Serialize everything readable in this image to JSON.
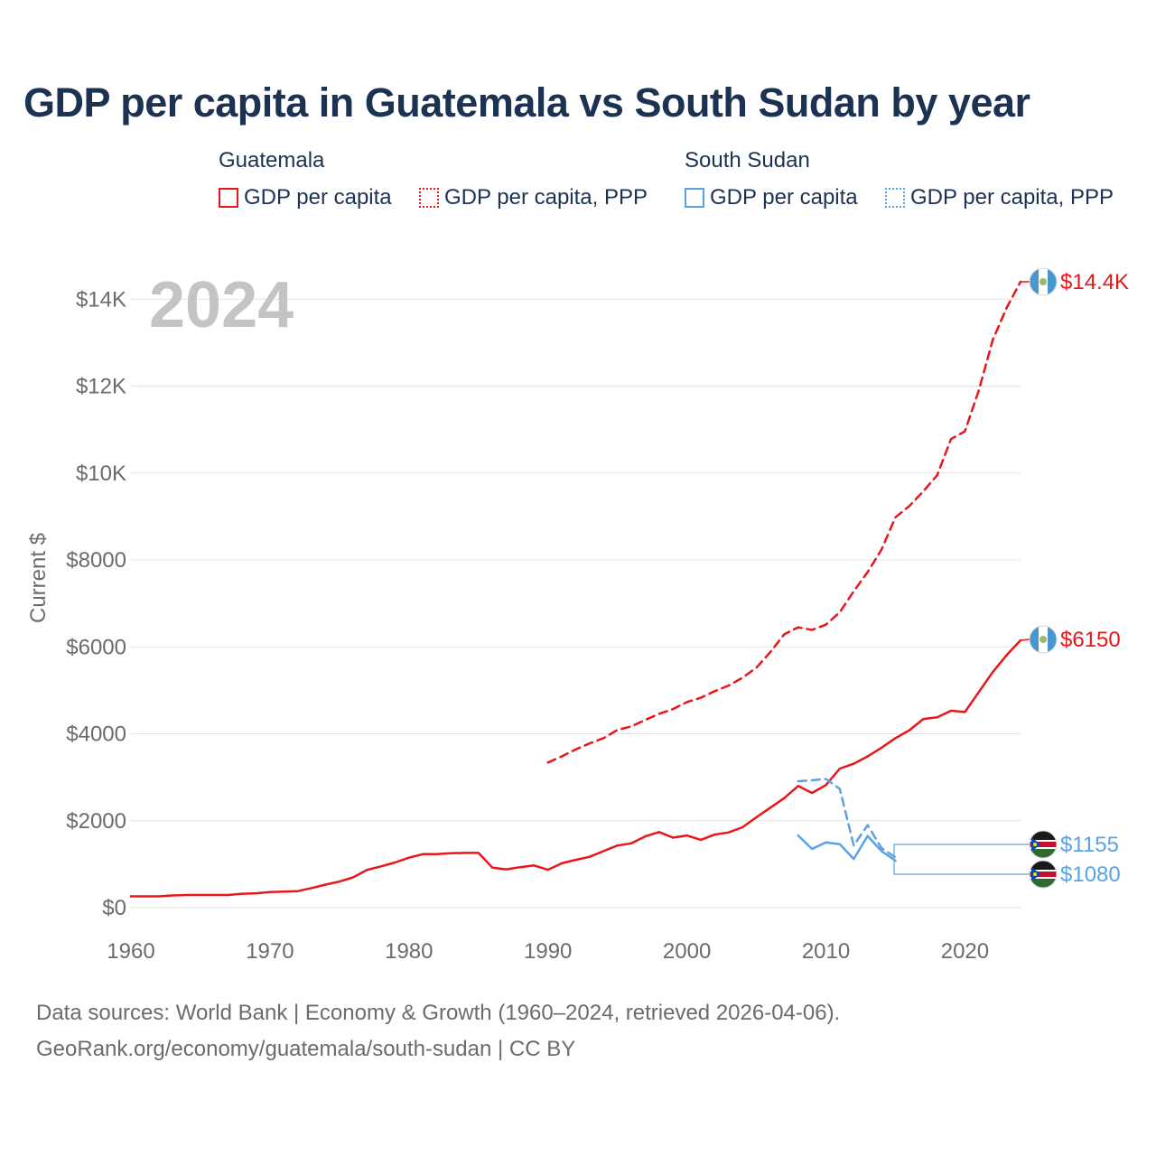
{
  "title": "GDP per capita in Guatemala vs South Sudan by year",
  "legend": {
    "groups": [
      {
        "name": "Guatemala",
        "items": [
          "GDP per capita",
          "GDP per capita, PPP"
        ]
      },
      {
        "name": "South Sudan",
        "items": [
          "GDP per capita",
          "GDP per capita, PPP"
        ]
      }
    ]
  },
  "footer": {
    "line1": "Data sources: World Bank | Economy & Growth (1960–2024, retrieved 2026-04-06).",
    "line2": "GeoRank.org/economy/guatemala/south-sudan | CC BY"
  },
  "colors": {
    "guatemala": "#e8161b",
    "south_sudan": "#5aa2e3",
    "grid": "#e3e3e3",
    "axis_text": "#6b6b6b",
    "year": "#c4c4c4"
  },
  "chart_data": {
    "type": "line",
    "title": "GDP per capita in Guatemala vs South Sudan by year",
    "xlabel": "",
    "ylabel": "Current $",
    "year_label": "2024",
    "xlim": [
      1960,
      2024
    ],
    "ylim": [
      0,
      14400
    ],
    "x_ticks": [
      1960,
      1970,
      1980,
      1990,
      2000,
      2010,
      2020
    ],
    "y_ticks": [
      0,
      2000,
      4000,
      6000,
      8000,
      10000,
      12000,
      14000
    ],
    "y_tick_labels": [
      "$0",
      "$2000",
      "$4000",
      "$6000",
      "$8000",
      "$10K",
      "$12K",
      "$14K"
    ],
    "grid": true,
    "series": [
      {
        "name": "Guatemala GDP per capita",
        "country": "guatemala",
        "style": "solid",
        "end_label": "$6150",
        "x": [
          1960,
          1961,
          1962,
          1963,
          1964,
          1965,
          1966,
          1967,
          1968,
          1969,
          1970,
          1971,
          1972,
          1973,
          1974,
          1975,
          1976,
          1977,
          1978,
          1979,
          1980,
          1981,
          1982,
          1983,
          1984,
          1985,
          1986,
          1987,
          1988,
          1989,
          1990,
          1991,
          1992,
          1993,
          1994,
          1995,
          1996,
          1997,
          1998,
          1999,
          2000,
          2001,
          2002,
          2003,
          2004,
          2005,
          2006,
          2007,
          2008,
          2009,
          2010,
          2011,
          2012,
          2013,
          2014,
          2015,
          2016,
          2017,
          2018,
          2019,
          2020,
          2021,
          2022,
          2023,
          2024
        ],
        "values": [
          260,
          260,
          260,
          280,
          290,
          290,
          290,
          290,
          320,
          330,
          360,
          370,
          380,
          450,
          530,
          600,
          700,
          870,
          950,
          1040,
          1150,
          1230,
          1230,
          1250,
          1260,
          1260,
          920,
          880,
          930,
          970,
          870,
          1020,
          1100,
          1170,
          1300,
          1430,
          1480,
          1640,
          1740,
          1610,
          1660,
          1560,
          1680,
          1730,
          1850,
          2080,
          2300,
          2520,
          2800,
          2640,
          2820,
          3200,
          3310,
          3480,
          3680,
          3900,
          4080,
          4340,
          4380,
          4530,
          4500,
          4960,
          5420,
          5810,
          6150
        ]
      },
      {
        "name": "Guatemala GDP per capita, PPP",
        "country": "guatemala",
        "style": "dashed",
        "end_label": "$14.4K",
        "x": [
          1990,
          1991,
          1992,
          1993,
          1994,
          1995,
          1996,
          1997,
          1998,
          1999,
          2000,
          2001,
          2002,
          2003,
          2004,
          2005,
          2006,
          2007,
          2008,
          2009,
          2010,
          2011,
          2012,
          2013,
          2014,
          2015,
          2016,
          2017,
          2018,
          2019,
          2020,
          2021,
          2022,
          2023,
          2024
        ],
        "values": [
          3340,
          3480,
          3640,
          3780,
          3900,
          4090,
          4170,
          4320,
          4460,
          4570,
          4730,
          4830,
          4980,
          5110,
          5290,
          5520,
          5880,
          6290,
          6450,
          6390,
          6510,
          6800,
          7280,
          7720,
          8240,
          8980,
          9240,
          9580,
          9950,
          10780,
          10960,
          11900,
          13060,
          13800,
          14400
        ]
      },
      {
        "name": "South Sudan GDP per capita",
        "country": "south_sudan",
        "style": "solid",
        "end_label": "$1080",
        "x": [
          2008,
          2009,
          2010,
          2011,
          2012,
          2013,
          2014,
          2015
        ],
        "values": [
          1660,
          1350,
          1500,
          1460,
          1120,
          1650,
          1300,
          1080
        ]
      },
      {
        "name": "South Sudan GDP per capita, PPP",
        "country": "south_sudan",
        "style": "dashed",
        "end_label": "$1155",
        "x": [
          2008,
          2009,
          2010,
          2011,
          2012,
          2013,
          2014,
          2015
        ],
        "values": [
          2910,
          2930,
          2960,
          2730,
          1430,
          1900,
          1370,
          1155
        ]
      }
    ]
  }
}
